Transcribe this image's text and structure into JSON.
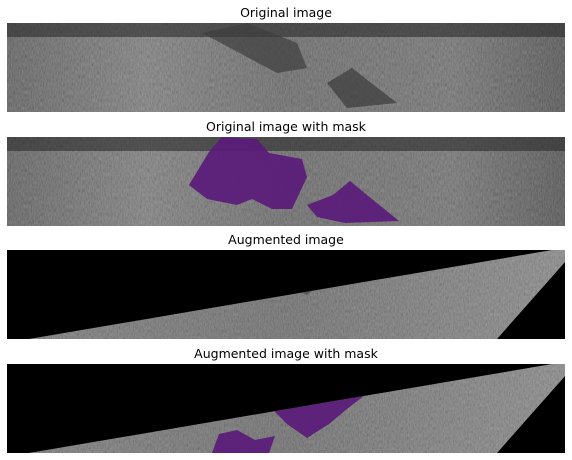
{
  "panels": [
    {
      "title": "Original image"
    },
    {
      "title": "Original image with mask"
    },
    {
      "title": "Augmented image"
    },
    {
      "title": "Augmented image with mask"
    }
  ],
  "colors": {
    "background": "#ffffff",
    "mask": "#5a1a7a",
    "steel_base": "#555555",
    "padding": "#000000"
  }
}
